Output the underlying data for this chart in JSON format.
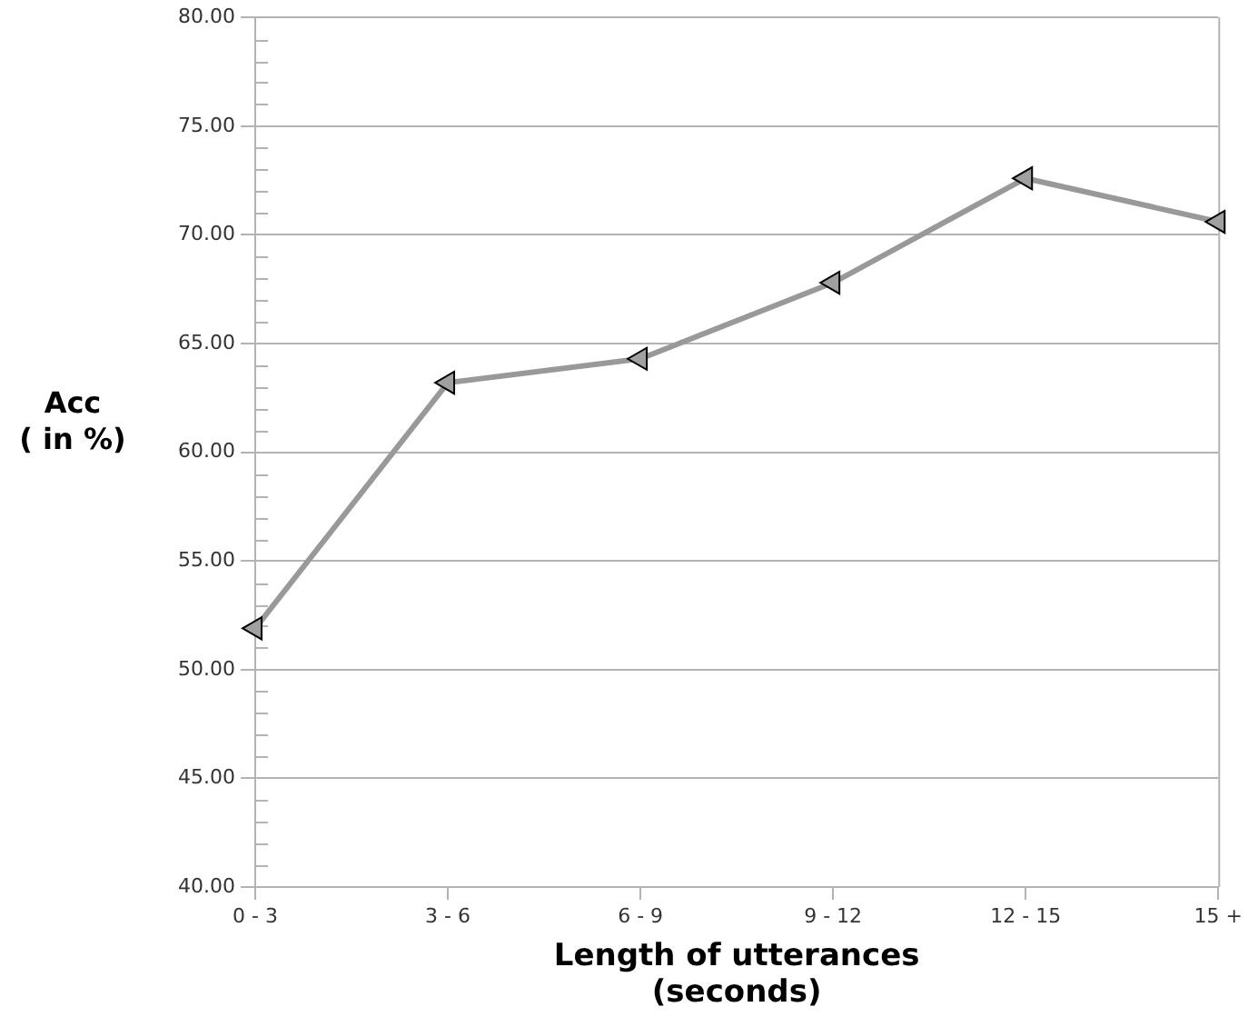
{
  "chart_data": {
    "type": "line",
    "xlabel": "Length of utterances\n(seconds)",
    "ylabel": "Acc\n( in %)",
    "categories": [
      "0 - 3",
      "3 - 6",
      "6 - 9",
      "9 - 12",
      "12 - 15",
      "15 +"
    ],
    "series": [
      {
        "color": "#999999",
        "values": [
          51.9,
          63.2,
          64.3,
          67.8,
          72.6,
          70.6
        ]
      }
    ],
    "ylim": [
      40,
      80
    ],
    "yticks": [
      {
        "value": 40,
        "label": "40.00"
      },
      {
        "value": 41,
        "label": null
      },
      {
        "value": 42,
        "label": null
      },
      {
        "value": 43,
        "label": null
      },
      {
        "value": 44,
        "label": null
      },
      {
        "value": 45,
        "label": "45.00"
      },
      {
        "value": 46,
        "label": null
      },
      {
        "value": 47,
        "label": null
      },
      {
        "value": 48,
        "label": null
      },
      {
        "value": 49,
        "label": null
      },
      {
        "value": 50,
        "label": "50.00"
      },
      {
        "value": 51,
        "label": null
      },
      {
        "value": 52,
        "label": null
      },
      {
        "value": 53,
        "label": null
      },
      {
        "value": 54,
        "label": null
      },
      {
        "value": 55,
        "label": "55.00"
      },
      {
        "value": 56,
        "label": null
      },
      {
        "value": 57,
        "label": null
      },
      {
        "value": 58,
        "label": null
      },
      {
        "value": 59,
        "label": null
      },
      {
        "value": 60,
        "label": "60.00"
      },
      {
        "value": 61,
        "label": null
      },
      {
        "value": 62,
        "label": null
      },
      {
        "value": 63,
        "label": null
      },
      {
        "value": 64,
        "label": null
      },
      {
        "value": 65,
        "label": "65.00"
      },
      {
        "value": 66,
        "label": null
      },
      {
        "value": 67,
        "label": null
      },
      {
        "value": 68,
        "label": null
      },
      {
        "value": 69,
        "label": null
      },
      {
        "value": 70,
        "label": "70.00"
      },
      {
        "value": 71,
        "label": null
      },
      {
        "value": 72,
        "label": null
      },
      {
        "value": 73,
        "label": null
      },
      {
        "value": 74,
        "label": null
      },
      {
        "value": 75,
        "label": "75.00"
      },
      {
        "value": 76,
        "label": null
      },
      {
        "value": 77,
        "label": null
      },
      {
        "value": 78,
        "label": null
      },
      {
        "value": 79,
        "label": null
      },
      {
        "value": 80,
        "label": "80.00"
      }
    ],
    "grid": "y",
    "legend": false,
    "marker": "triangle",
    "line_style": "solid"
  }
}
